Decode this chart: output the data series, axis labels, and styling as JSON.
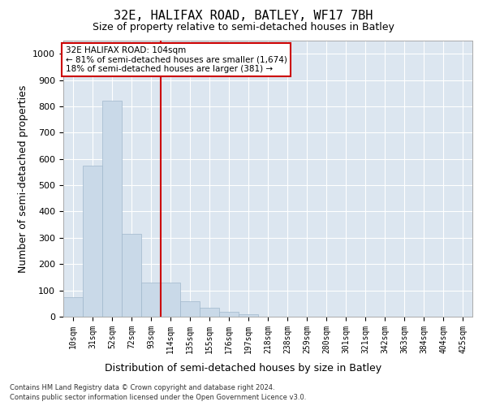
{
  "title1": "32E, HALIFAX ROAD, BATLEY, WF17 7BH",
  "title2": "Size of property relative to semi-detached houses in Batley",
  "xlabel": "Distribution of semi-detached houses by size in Batley",
  "ylabel": "Number of semi-detached properties",
  "footnote1": "Contains HM Land Registry data © Crown copyright and database right 2024.",
  "footnote2": "Contains public sector information licensed under the Open Government Licence v3.0.",
  "bar_labels": [
    "10sqm",
    "31sqm",
    "52sqm",
    "72sqm",
    "93sqm",
    "114sqm",
    "135sqm",
    "155sqm",
    "176sqm",
    "197sqm",
    "218sqm",
    "238sqm",
    "259sqm",
    "280sqm",
    "301sqm",
    "321sqm",
    "342sqm",
    "363sqm",
    "384sqm",
    "404sqm",
    "425sqm"
  ],
  "bar_values": [
    75,
    575,
    820,
    315,
    130,
    130,
    60,
    35,
    20,
    10,
    0,
    0,
    0,
    0,
    0,
    0,
    0,
    0,
    0,
    0,
    0
  ],
  "bar_color": "#c9d9e8",
  "bar_edgecolor": "#a0b8cc",
  "vline_color": "#cc0000",
  "vline_x_index": 4.5,
  "annotation_text": "32E HALIFAX ROAD: 104sqm\n← 81% of semi-detached houses are smaller (1,674)\n18% of semi-detached houses are larger (381) →",
  "annotation_box_color": "#ffffff",
  "annotation_box_edgecolor": "#cc0000",
  "ylim": [
    0,
    1050
  ],
  "yticks": [
    0,
    100,
    200,
    300,
    400,
    500,
    600,
    700,
    800,
    900,
    1000
  ],
  "plot_background": "#dce6f0",
  "grid_color": "#ffffff",
  "title_fontsize": 11,
  "subtitle_fontsize": 9,
  "tick_fontsize": 7,
  "label_fontsize": 9,
  "footnote_fontsize": 6
}
